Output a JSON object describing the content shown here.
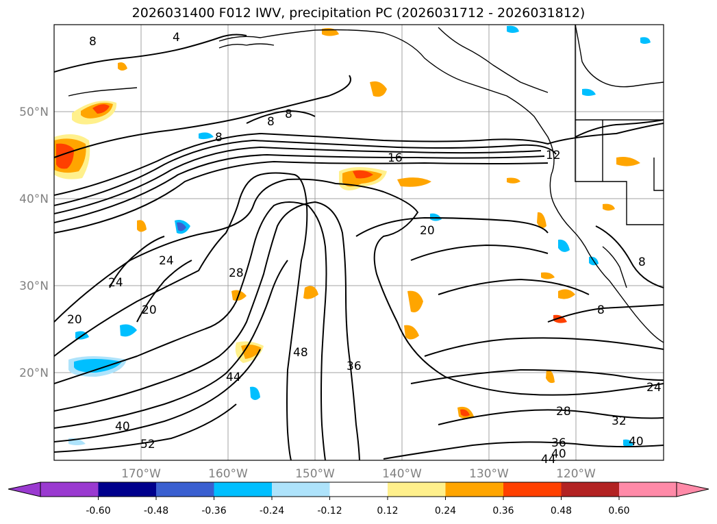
{
  "title": "2026031400 F012 IWV, precipitation PC (2026031712 - 2026031812)",
  "map": {
    "lat_labels": [
      "50°N",
      "40°N",
      "30°N",
      "20°N"
    ],
    "lon_labels": [
      "170°W",
      "160°W",
      "150°W",
      "140°W",
      "130°W",
      "120°W"
    ],
    "contour_labels": [
      "8",
      "4",
      "8",
      "8",
      "8",
      "16",
      "12",
      "20",
      "24",
      "24",
      "28",
      "20",
      "20",
      "48",
      "36",
      "44",
      "40",
      "52",
      "28",
      "32",
      "24",
      "36",
      "40",
      "40",
      "44",
      "8",
      "8"
    ]
  },
  "colorbar": {
    "ticks": [
      "-0.60",
      "-0.48",
      "-0.36",
      "-0.24",
      "-0.12",
      "0.12",
      "0.24",
      "0.36",
      "0.48",
      "0.60"
    ],
    "colors": [
      "#9a3ad0",
      "#00008c",
      "#3a5fd0",
      "#00bfff",
      "#aee3fb",
      "#ffffff",
      "#fff08c",
      "#ffa500",
      "#ff4000",
      "#b22222",
      "#ff8aa8"
    ]
  }
}
